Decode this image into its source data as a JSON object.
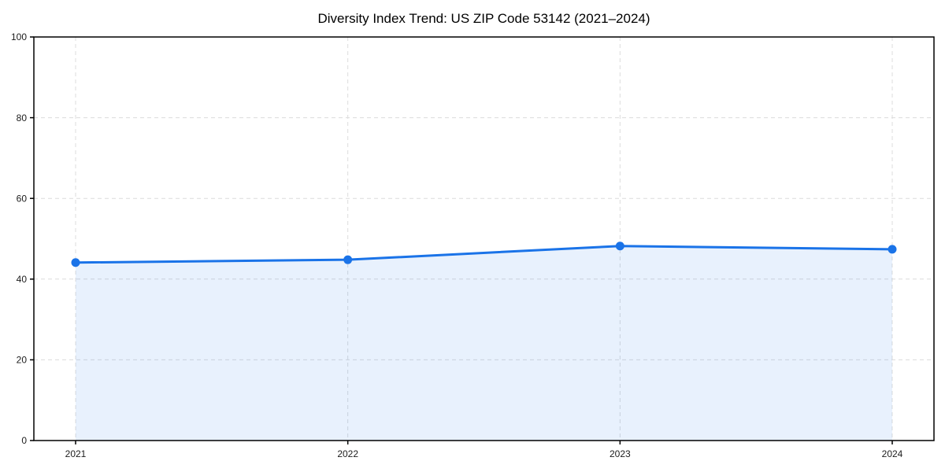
{
  "chart_data": {
    "type": "area",
    "title": "Diversity Index Trend: US ZIP Code 53142 (2021–2024)",
    "categories": [
      "2021",
      "2022",
      "2023",
      "2024"
    ],
    "series": [
      {
        "name": "Diversity Index",
        "values": [
          44.1,
          44.8,
          48.2,
          47.4
        ]
      }
    ],
    "xlabel": "",
    "ylabel": "",
    "ylim": [
      0,
      100
    ],
    "yticks": [
      0,
      20,
      40,
      60,
      80,
      100
    ],
    "grid": true,
    "grid_style": "dashed",
    "legend": "none",
    "colors": {
      "line": "#1a73e8",
      "marker": "#1a73e8",
      "fill": "#1a73e8",
      "fill_opacity": 0.1,
      "grid": "#dcdcdc",
      "axis": "#000000",
      "tick_text": "#1c1c1c",
      "background": "#ffffff"
    }
  }
}
